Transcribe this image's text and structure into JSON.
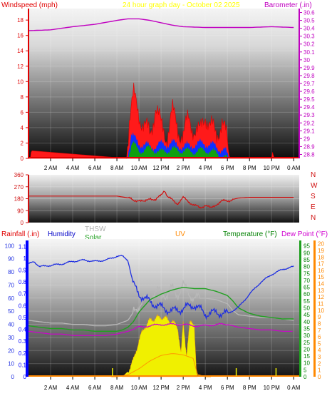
{
  "header": {
    "left_title": "Windspeed (mph)",
    "center_title": "24 hour graph day - October 02 2025",
    "right_title": "Barometer (.in)"
  },
  "colors": {
    "wind": "#e00000",
    "wind_gust": "#ff1a1a",
    "wind_avg": "#1030ff",
    "wind_solar": "#10a010",
    "barometer": "#c000c0",
    "direction": "#d01010",
    "rain": "#0000ff",
    "humidity": "#2030e0",
    "thsw": "#b8b8b8",
    "solar": "#20a020",
    "uv": "#f0f000",
    "uv_edge": "#ff9900",
    "temperature": "#20a020",
    "dewpoint": "#d000d0",
    "accent_orange": "#ff8800"
  },
  "chart_data": [
    {
      "type": "line",
      "title": "24 hour graph day - October 02 2025",
      "ylabel_left": "Windspeed (mph)",
      "ylabel_right": "Barometer (.in)",
      "x_ticks": [
        "2 AM",
        "4 AM",
        "6 AM",
        "8 AM",
        "10 AM",
        "12 PM",
        "2 PM",
        "4 PM",
        "6 PM",
        "8 PM",
        "10 PM",
        "0 AM"
      ],
      "y_left_ticks": [
        "0",
        "2",
        "4",
        "6",
        "8",
        "10",
        "12",
        "14",
        "16",
        "18"
      ],
      "y_left_range": [
        0,
        19.5
      ],
      "y_right_ticks": [
        "28.8",
        "28.9",
        "29",
        "29.1",
        "29.2",
        "29.3",
        "29.4",
        "29.5",
        "29.6",
        "29.7",
        "29.8",
        "29.9",
        "30",
        "30.1",
        "30.2",
        "30.3",
        "30.4",
        "30.5",
        "30.6"
      ],
      "y_right_range": [
        28.75,
        30.65
      ],
      "series": [
        {
          "name": "Barometer",
          "x": [
            0,
            2,
            4,
            6,
            8,
            9,
            10,
            11,
            12,
            13,
            14,
            16,
            18,
            20,
            22,
            24
          ],
          "y": [
            30.37,
            30.38,
            30.42,
            30.45,
            30.5,
            30.52,
            30.52,
            30.5,
            30.47,
            30.44,
            30.42,
            30.41,
            30.41,
            30.41,
            30.42,
            30.41
          ]
        },
        {
          "name": "Wind gust",
          "x": [
            0,
            0.2,
            0.25,
            8.9,
            9.1,
            9.5,
            10,
            10.5,
            11,
            11.5,
            12,
            12.5,
            13,
            13.5,
            14,
            14.5,
            15,
            15.5,
            16,
            16.5,
            17,
            17.5,
            18,
            18.2,
            22,
            22.1,
            22.2,
            24
          ],
          "y": [
            0,
            0,
            1,
            0,
            5,
            8,
            6,
            4,
            3,
            7,
            4,
            3,
            6,
            4,
            3,
            5,
            4,
            3,
            6,
            4,
            3,
            5,
            2,
            0,
            0,
            1,
            0,
            0
          ]
        },
        {
          "name": "Wind avg",
          "x": [
            8.9,
            9.3,
            10,
            11,
            12,
            13,
            14,
            15,
            16,
            17,
            17.8,
            18.1
          ],
          "y": [
            0,
            3,
            2,
            1.5,
            1.8,
            2,
            1.5,
            1.8,
            2,
            1.5,
            1,
            0
          ]
        },
        {
          "name": "Wind solar",
          "x": [
            8.9,
            9.4,
            10,
            11,
            12,
            13,
            14,
            15,
            16,
            17,
            18
          ],
          "y": [
            0,
            2,
            1,
            1.3,
            0.8,
            1.2,
            1,
            0.9,
            1.1,
            0.7,
            0
          ]
        }
      ]
    },
    {
      "type": "line",
      "title": "Wind direction",
      "y_ticks": [
        "360",
        "270",
        "180",
        "90",
        "0"
      ],
      "y_range": [
        0,
        360
      ],
      "right_labels": [
        "N",
        "W",
        "S",
        "E",
        "N"
      ],
      "series": [
        {
          "name": "Direction",
          "x": [
            0,
            8,
            9.1,
            9.5,
            10,
            10.5,
            11,
            11.5,
            12,
            12.3,
            12.6,
            13,
            13.5,
            14,
            14.5,
            15,
            15.5,
            16,
            16.5,
            17,
            17.5,
            18,
            18.5,
            19,
            20,
            22,
            24
          ],
          "y": [
            200,
            200,
            185,
            160,
            175,
            150,
            190,
            165,
            210,
            250,
            190,
            170,
            145,
            185,
            160,
            130,
            110,
            135,
            105,
            140,
            160,
            165,
            175,
            185,
            190,
            190,
            190
          ]
        }
      ]
    },
    {
      "type": "line",
      "legend": [
        "Rainfall (.in)",
        "Humidity",
        "THSW",
        "Solar",
        "UV",
        "Temperature (°F)",
        "Dew Point (°F)"
      ],
      "x_ticks": [
        "2 AM",
        "4 AM",
        "6 AM",
        "8 AM",
        "10 AM",
        "12 PM",
        "2 PM",
        "4 PM",
        "6 PM",
        "8 PM",
        "10 PM",
        "0 AM"
      ],
      "rain_ticks": [
        "0",
        "0.1",
        "0.2",
        "0.3",
        "0.4",
        "0.5",
        "0.6",
        "0.7",
        "0.8",
        "0.9",
        "1",
        "1.1"
      ],
      "rain_range": [
        0,
        1.15
      ],
      "humidity_ticks": [
        "0",
        "10",
        "20",
        "30",
        "40",
        "50",
        "60",
        "70",
        "80",
        "90",
        "100"
      ],
      "humidity_range": [
        0,
        104
      ],
      "temp_ticks": [
        "0",
        "5",
        "10",
        "15",
        "20",
        "25",
        "30",
        "35",
        "40",
        "45",
        "50",
        "55",
        "60",
        "65",
        "70",
        "75",
        "80",
        "85",
        "90",
        "95"
      ],
      "temp_range": [
        0,
        99
      ],
      "uv_ticks": [
        "0",
        "1",
        "2",
        "3",
        "4",
        "5",
        "6",
        "7",
        "8",
        "9",
        "10",
        "11",
        "12",
        "13",
        "14",
        "15",
        "16",
        "17",
        "18",
        "19",
        "20"
      ],
      "uv_range": [
        0,
        20.5
      ],
      "series": [
        {
          "name": "Humidity",
          "x": [
            0,
            0.5,
            1,
            2,
            3,
            4,
            5,
            6,
            7,
            8,
            8.5,
            9,
            9.5,
            10,
            11,
            12,
            13,
            14,
            15,
            16,
            17,
            18,
            19,
            20,
            21,
            22,
            23,
            24
          ],
          "y": [
            86,
            88,
            84,
            85,
            86,
            88,
            89,
            88,
            89,
            92,
            92,
            89,
            70,
            63,
            57,
            53,
            50,
            52,
            55,
            48,
            49,
            48,
            53,
            63,
            72,
            78,
            82,
            84
          ]
        },
        {
          "name": "Temperature",
          "x": [
            0,
            1,
            2,
            3,
            4,
            5,
            6,
            7,
            8,
            8.5,
            9,
            9.5,
            10,
            11,
            12,
            13,
            14,
            15,
            16,
            17,
            18,
            18.5,
            19,
            20,
            21,
            22,
            23,
            24
          ],
          "y": [
            37,
            36,
            35,
            35,
            34,
            34,
            33,
            33,
            33,
            34,
            36,
            40,
            47,
            56,
            60,
            63,
            65,
            64,
            64,
            62,
            59,
            55,
            50,
            46,
            44,
            43,
            42,
            42
          ]
        },
        {
          "name": "THSW",
          "x": [
            0,
            1,
            2,
            3,
            4,
            5,
            6,
            7,
            8,
            9,
            9.5,
            10,
            10.5,
            11,
            11.5,
            12,
            12.5,
            13,
            13.5,
            14,
            14.5,
            15,
            16,
            17,
            18,
            18.5,
            19,
            20,
            21,
            22,
            23,
            24
          ],
          "y": [
            41,
            40,
            39,
            39,
            38,
            38,
            37,
            37,
            38,
            41,
            47,
            52,
            56,
            58,
            61,
            62,
            59,
            64,
            60,
            66,
            61,
            57,
            57,
            56,
            53,
            48,
            45,
            44,
            43,
            43,
            42,
            41
          ]
        },
        {
          "name": "Dew Point",
          "x": [
            0,
            1,
            2,
            3,
            4,
            5,
            6,
            7,
            8,
            9,
            10,
            11,
            12,
            13,
            14,
            15,
            16,
            17,
            18,
            19,
            20,
            21,
            22,
            23,
            24
          ],
          "y": [
            33,
            32,
            31,
            31,
            30,
            30,
            30,
            30,
            31,
            33,
            36,
            37,
            38,
            38,
            38,
            37,
            37,
            38,
            38,
            36,
            35,
            34,
            34,
            33,
            33
          ]
        },
        {
          "name": "UV",
          "x": [
            0,
            8.5,
            9,
            9.5,
            10,
            10.5,
            11,
            11.5,
            12,
            12.5,
            13,
            13.5,
            13.8,
            14,
            14.3,
            14.6,
            15,
            15.2,
            16,
            24
          ],
          "y": [
            0,
            0,
            0.8,
            2.5,
            5.5,
            7.5,
            8.5,
            8.8,
            9,
            8.7,
            8.3,
            7.5,
            3.5,
            8,
            3.5,
            8,
            8,
            0.5,
            0,
            0
          ]
        },
        {
          "name": "Solar",
          "x": [
            0,
            8,
            9,
            10,
            11,
            12,
            13,
            14,
            15,
            15.2,
            16,
            24
          ],
          "y": [
            0,
            0,
            0.3,
            1.2,
            2.4,
            3.2,
            3.5,
            3.3,
            2.7,
            0.4,
            0,
            0
          ]
        },
        {
          "name": "Rainfall",
          "x": [
            0,
            24
          ],
          "y": [
            0,
            0
          ]
        }
      ]
    }
  ],
  "panel1": {
    "left_title": "Windspeed (mph)"
  },
  "panel3": {
    "rain_label": "Rainfall (.in)",
    "humidity_label": "Humidity",
    "thsw_label": "THSW",
    "solar_label": "Solar",
    "uv_label": "UV",
    "temp_label": "Temperature (°F)",
    "dew_label": "Dew Point (°F)"
  }
}
